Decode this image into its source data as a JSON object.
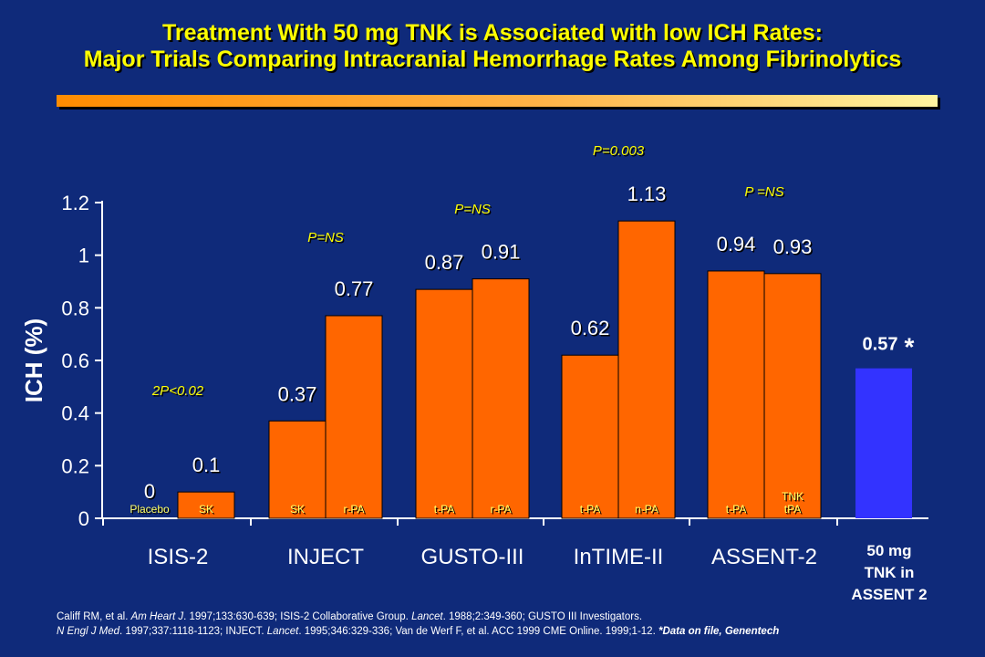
{
  "title": {
    "line1": "Treatment With  50 mg TNK is Associated with low ICH Rates:",
    "line2": "Major Trials Comparing Intracranial Hemorrhage Rates Among Fibrinolytics"
  },
  "colors": {
    "background": "#0f2a7a",
    "title": "#ffff00",
    "bar_orange": "#ff6600",
    "bar_blue": "#3333ff",
    "pvalue": "#ffff00",
    "axis_text": "#ffffff"
  },
  "chart_data": {
    "type": "bar",
    "ylabel": "ICH (%)",
    "ylim": [
      0,
      1.2
    ],
    "yticks": [
      "0",
      "0.2",
      "0.4",
      "0.6",
      "0.8",
      "1",
      "1.2"
    ],
    "grid": false,
    "groups": [
      {
        "name": "ISIS-2",
        "pvalue": "2P<0.02",
        "bars": [
          {
            "label": "Placebo",
            "value": 0,
            "value_label": "0"
          },
          {
            "label": "SK",
            "value": 0.1,
            "value_label": "0.1"
          }
        ]
      },
      {
        "name": "INJECT",
        "pvalue": "P=NS",
        "bars": [
          {
            "label": "SK",
            "value": 0.37,
            "value_label": "0.37"
          },
          {
            "label": "r-PA",
            "value": 0.77,
            "value_label": "0.77"
          }
        ]
      },
      {
        "name": "GUSTO-III",
        "pvalue": "P=NS",
        "bars": [
          {
            "label": "t-PA",
            "value": 0.87,
            "value_label": "0.87"
          },
          {
            "label": "r-PA",
            "value": 0.91,
            "value_label": "0.91"
          }
        ]
      },
      {
        "name": "InTIME-II",
        "pvalue": "P=0.003",
        "bars": [
          {
            "label": "t-PA",
            "value": 0.62,
            "value_label": "0.62"
          },
          {
            "label": "n-PA",
            "value": 1.13,
            "value_label": "1.13"
          }
        ]
      },
      {
        "name": "ASSENT-2",
        "pvalue": "P =NS",
        "bars": [
          {
            "label": "t-PA",
            "value": 0.94,
            "value_label": "0.94"
          },
          {
            "label": "TNK tPA",
            "value": 0.93,
            "value_label": "0.93"
          }
        ]
      }
    ],
    "highlight": {
      "value": 0.57,
      "value_label": "0.57",
      "marker": "*",
      "category_lines": [
        "50 mg",
        "TNK in",
        "ASSENT 2"
      ]
    }
  },
  "footer": {
    "line1": [
      {
        "t": "Califf RM, et al. ",
        "s": "n"
      },
      {
        "t": "Am Heart J",
        "s": "i"
      },
      {
        "t": ". 1997;133:630-639;  ISIS-2 Collaborative Group. ",
        "s": "n"
      },
      {
        "t": "Lancet",
        "s": "i"
      },
      {
        "t": ". 1988;2:349-360;  GUSTO III Investigators.",
        "s": "n"
      }
    ],
    "line2": [
      {
        "t": "N Engl J Med",
        "s": "i"
      },
      {
        "t": ". 1997;337:1118-1123;  INJECT. ",
        "s": "n"
      },
      {
        "t": "Lancet",
        "s": "i"
      },
      {
        "t": ". 1995;346:329-336;  Van de Werf F, et al. ACC 1999 CME Online. 1999;1-12. ",
        "s": "n"
      },
      {
        "t": "*Data on file, Genentech",
        "s": "bi"
      }
    ]
  }
}
